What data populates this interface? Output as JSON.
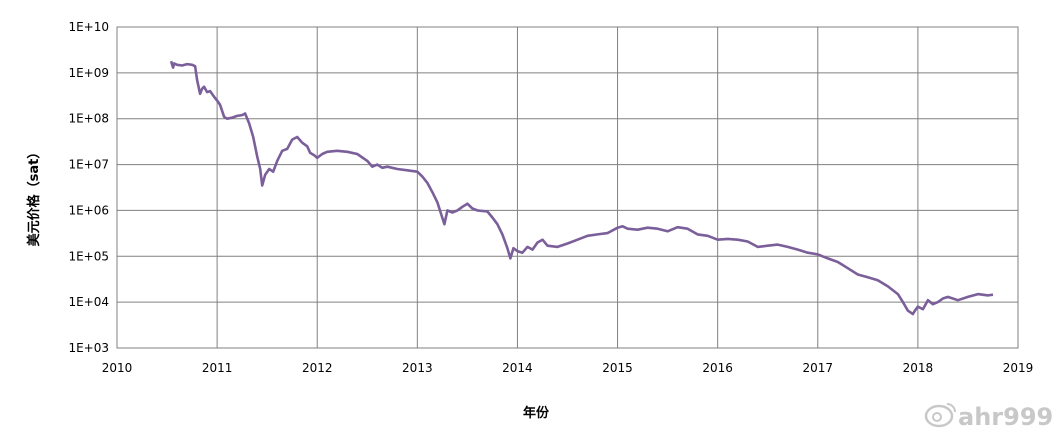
{
  "chart_data": {
    "type": "line",
    "title": "",
    "xlabel": "年份",
    "ylabel": "美元价格（sat）",
    "y_scale": "log",
    "xlim": [
      2010,
      2019
    ],
    "ylim": [
      1000,
      10000000000
    ],
    "x_ticks": [
      "2010",
      "2011",
      "2012",
      "2013",
      "2014",
      "2015",
      "2016",
      "2017",
      "2018",
      "2019"
    ],
    "y_ticks": [
      "1E+03",
      "1E+04",
      "1E+05",
      "1E+06",
      "1E+07",
      "1E+08",
      "1E+09",
      "1E+10"
    ],
    "grid": true,
    "legend": "none",
    "line_color": "#7b5f9a",
    "series": [
      {
        "x": [
          2010.54,
          2010.56,
          2010.57,
          2010.6,
          2010.65,
          2010.7,
          2010.75,
          2010.78,
          2010.8,
          2010.83,
          2010.85,
          2010.87,
          2010.9,
          2010.93,
          2010.97,
          2011.0,
          2011.03,
          2011.07,
          2011.1,
          2011.15,
          2011.2,
          2011.25,
          2011.28,
          2011.32,
          2011.36,
          2011.4,
          2011.43,
          2011.45,
          2011.48,
          2011.52,
          2011.56,
          2011.6,
          2011.65,
          2011.7,
          2011.75,
          2011.8,
          2011.85,
          2011.9,
          2011.93,
          2011.97,
          2012.0,
          2012.05,
          2012.1,
          2012.2,
          2012.3,
          2012.4,
          2012.5,
          2012.55,
          2012.6,
          2012.65,
          2012.7,
          2012.8,
          2012.9,
          2013.0,
          2013.05,
          2013.1,
          2013.15,
          2013.2,
          2013.24,
          2013.27,
          2013.3,
          2013.35,
          2013.4,
          2013.45,
          2013.5,
          2013.55,
          2013.6,
          2013.7,
          2013.75,
          2013.8,
          2013.85,
          2013.9,
          2013.93,
          2013.96,
          2014.0,
          2014.05,
          2014.1,
          2014.15,
          2014.2,
          2014.25,
          2014.3,
          2014.4,
          2014.5,
          2014.6,
          2014.7,
          2014.8,
          2014.9,
          2015.0,
          2015.05,
          2015.1,
          2015.2,
          2015.3,
          2015.4,
          2015.5,
          2015.6,
          2015.7,
          2015.8,
          2015.9,
          2016.0,
          2016.1,
          2016.2,
          2016.3,
          2016.4,
          2016.5,
          2016.6,
          2016.7,
          2016.8,
          2016.9,
          2017.0,
          2017.1,
          2017.2,
          2017.3,
          2017.4,
          2017.5,
          2017.6,
          2017.7,
          2017.8,
          2017.85,
          2017.9,
          2017.95,
          2017.97,
          2018.0,
          2018.05,
          2018.1,
          2018.15,
          2018.2,
          2018.25,
          2018.3,
          2018.4,
          2018.5,
          2018.6,
          2018.7,
          2018.75
        ],
        "y": [
          1800000000,
          1300000000,
          1600000000,
          1500000000,
          1450000000,
          1550000000,
          1500000000,
          1400000000,
          700000000,
          350000000,
          450000000,
          500000000,
          380000000,
          400000000,
          300000000,
          250000000,
          200000000,
          110000000,
          100000000,
          105000000,
          115000000,
          120000000,
          130000000,
          80000000,
          40000000,
          15000000,
          8000000,
          3500000,
          6000000,
          8000000,
          7000000,
          12000000,
          20000000,
          22000000,
          35000000,
          40000000,
          30000000,
          25000000,
          18000000,
          16000000,
          14000000,
          17000000,
          19000000,
          20000000,
          19000000,
          17000000,
          12000000,
          9000000,
          10000000,
          8500000,
          9000000,
          8000000,
          7500000,
          7000000,
          5500000,
          4000000,
          2500000,
          1500000,
          800000,
          500000,
          1000000,
          900000,
          1000000,
          1200000,
          1400000,
          1100000,
          1000000,
          950000,
          700000,
          500000,
          300000,
          150000,
          90000,
          150000,
          130000,
          120000,
          160000,
          140000,
          200000,
          230000,
          170000,
          160000,
          190000,
          230000,
          280000,
          300000,
          320000,
          420000,
          450000,
          400000,
          380000,
          420000,
          400000,
          350000,
          430000,
          400000,
          300000,
          280000,
          230000,
          240000,
          230000,
          210000,
          160000,
          170000,
          180000,
          160000,
          140000,
          120000,
          110000,
          90000,
          75000,
          55000,
          40000,
          35000,
          30000,
          22000,
          15000,
          10000,
          6500,
          5500,
          6500,
          8000,
          7000,
          11000,
          9000,
          10000,
          12000,
          13000,
          11000,
          13000,
          15000,
          14000,
          14500
        ]
      }
    ]
  },
  "watermark": {
    "text": "ahr999",
    "icon": "weibo-icon"
  }
}
